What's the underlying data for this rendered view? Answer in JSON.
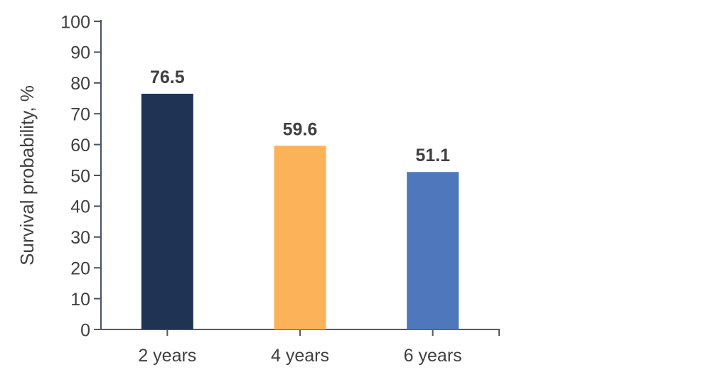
{
  "chart_data": {
    "type": "bar",
    "categories": [
      "2 years",
      "4 years",
      "6 years"
    ],
    "values": [
      76.5,
      59.6,
      51.1
    ],
    "value_labels": [
      "76.5",
      "59.6",
      "51.1"
    ],
    "bar_colors": [
      "#1F3355",
      "#FBB259",
      "#4F77BC"
    ],
    "ylabel": "Survival probability, %",
    "ylim": [
      0,
      100
    ],
    "yticks": [
      0,
      10,
      20,
      30,
      40,
      50,
      60,
      70,
      80,
      90,
      100
    ],
    "grid": false,
    "legend": false,
    "colors": {
      "y_axis": "#44546A",
      "x_axis": "#595959",
      "tick_label": "#404040",
      "value_label": "#3F3F3F",
      "axis_title": "#404040",
      "background": "#ffffff"
    }
  }
}
